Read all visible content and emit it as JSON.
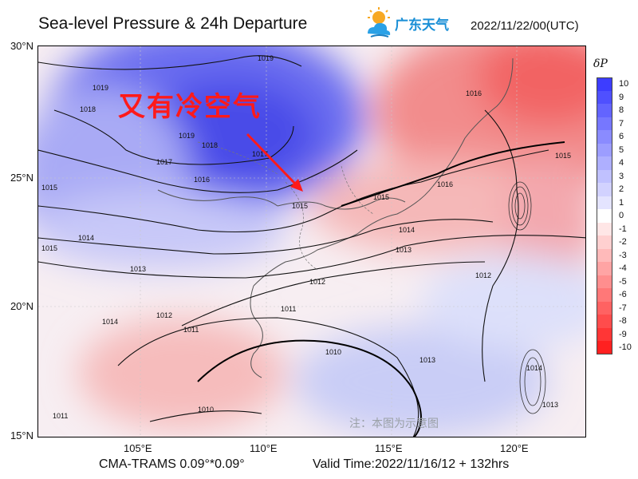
{
  "header": {
    "title": "Sea-level Pressure & 24h Departure",
    "logo_text": "广东天气",
    "datetime": "2022/11/22/00(UTC)"
  },
  "annotation": {
    "text": "又有冷空气",
    "color": "#ff1a1a"
  },
  "axes": {
    "lat_ticks": [
      "30°N",
      "25°N",
      "20°N",
      "15°N"
    ],
    "lon_ticks": [
      "105°E",
      "110°E",
      "115°E",
      "120°E"
    ]
  },
  "colorbar": {
    "title": "δP",
    "levels": [
      "10",
      "9",
      "8",
      "7",
      "6",
      "5",
      "4",
      "3",
      "2",
      "1",
      "0",
      "-1",
      "-2",
      "-3",
      "-4",
      "-5",
      "-6",
      "-7",
      "-8",
      "-9",
      "-10"
    ],
    "colors": [
      "#3d3dff",
      "#4f50ff",
      "#6364ff",
      "#7677ff",
      "#8a8bff",
      "#9c9dff",
      "#aeafff",
      "#c0c1ff",
      "#d2d2ff",
      "#e4e4ff",
      "#ffffff",
      "#ffe6e6",
      "#ffd0d0",
      "#ffbaba",
      "#ffa4a4",
      "#ff8e8e",
      "#ff7878",
      "#ff6262",
      "#ff4c4c",
      "#ff3636",
      "#ff2020"
    ]
  },
  "isobars": [
    {
      "label": "1019"
    },
    {
      "label": "1019"
    },
    {
      "label": "1018"
    },
    {
      "label": "1018"
    },
    {
      "label": "1019"
    },
    {
      "label": "1017"
    },
    {
      "label": "1017"
    },
    {
      "label": "1016"
    },
    {
      "label": "1015"
    },
    {
      "label": "1015"
    },
    {
      "label": "1016"
    },
    {
      "label": "1016"
    },
    {
      "label": "1015"
    },
    {
      "label": "1014"
    },
    {
      "label": "1013"
    },
    {
      "label": "1012"
    },
    {
      "label": "1012"
    },
    {
      "label": "1011"
    },
    {
      "label": "1011"
    },
    {
      "label": "1010"
    },
    {
      "label": "1013"
    },
    {
      "label": "1010"
    },
    {
      "label": "1015"
    },
    {
      "label": "1014"
    },
    {
      "label": "1014"
    },
    {
      "label": "1013"
    },
    {
      "label": "1012"
    },
    {
      "label": "1015"
    },
    {
      "label": "1014"
    },
    {
      "label": "1013"
    },
    {
      "label": "1011"
    }
  ],
  "footer": {
    "model": "CMA-TRAMS 0.09°*0.09°",
    "valid_time": "Valid Time:2022/11/16/12 + 132hrs"
  },
  "watermark": "注：本图为示意图"
}
